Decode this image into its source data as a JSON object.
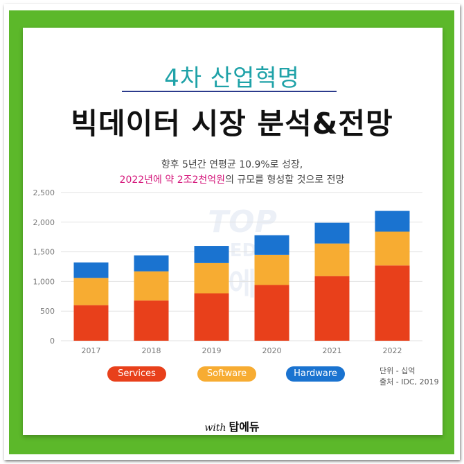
{
  "header": {
    "kicker": "4차 산업혁명",
    "title": "빅데이터 시장 분석&전망"
  },
  "subtitle": {
    "line1": "향후 5년간 연평균 10.9%로 성장,",
    "line2_highlight": "2022년에 약 2조2천억원",
    "line2_rest": "의 규모를 형성할 것으로 전망"
  },
  "watermark": {
    "text_top": "TOP",
    "text_mid": "EDU",
    "text_bottom": "탑에듀"
  },
  "legend": {
    "services": "Services",
    "software": "Software",
    "hardware": "Hardware"
  },
  "notes": {
    "unit": "단위 - 십억",
    "source": "출처 - IDC, 2019"
  },
  "footer": {
    "with": "with",
    "brand": "탑에듀"
  },
  "colors": {
    "services": "#e8401b",
    "software": "#f7ac32",
    "hardware": "#1a73d0",
    "accent_teal": "#1fa2a8",
    "highlight_pink": "#d4157a",
    "frame_green": "#5cb82a"
  },
  "chart_data": {
    "type": "bar",
    "stacked": true,
    "categories": [
      "2017",
      "2018",
      "2019",
      "2020",
      "2021",
      "2022"
    ],
    "series": [
      {
        "name": "Services",
        "values": [
          600,
          680,
          800,
          940,
          1090,
          1270
        ]
      },
      {
        "name": "Software",
        "values": [
          460,
          490,
          510,
          510,
          550,
          570
        ]
      },
      {
        "name": "Hardware",
        "values": [
          260,
          270,
          290,
          330,
          350,
          350
        ]
      }
    ],
    "yticks": [
      0,
      500,
      1000,
      1500,
      2000,
      2500
    ],
    "ytick_labels": [
      "0",
      "500",
      "1,000",
      "1,500",
      "2,000",
      "2,500"
    ],
    "ylim": [
      0,
      2500
    ],
    "grid": true,
    "legend_position": "bottom"
  }
}
